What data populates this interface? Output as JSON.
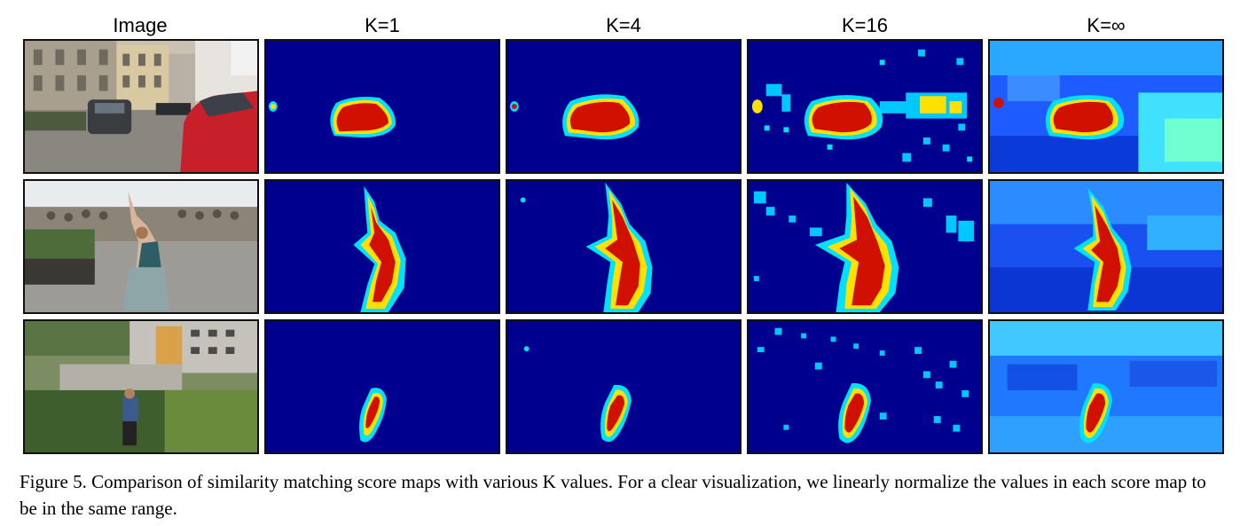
{
  "figure": {
    "columns": [
      "Image",
      "K=1",
      "K=4",
      "K=16",
      "K=∞"
    ],
    "rows": [
      {
        "scene": "street with cars"
      },
      {
        "scene": "dancer in courtyard"
      },
      {
        "scene": "person in garden"
      }
    ],
    "caption": "Figure 5. Comparison of similarity matching score maps with various K values. For a clear visualization, we linearly normalize the values in each score map to be in the same range.",
    "colors": {
      "background": "#00008f",
      "low": "#0000d0",
      "mid": "#00e0ff",
      "high": "#ffe000",
      "peak": "#d01000",
      "core": "#b00000"
    }
  }
}
